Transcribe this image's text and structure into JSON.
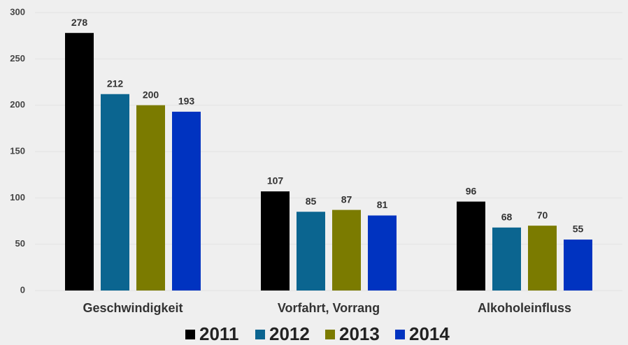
{
  "chart_data": {
    "type": "bar",
    "categories": [
      "Geschwindigkeit",
      "Vorfahrt, Vorrang",
      "Alkoholeinfluss"
    ],
    "series": [
      {
        "name": "2011",
        "color": "#000000",
        "values": [
          278,
          107,
          96
        ]
      },
      {
        "name": "2012",
        "color": "#0b6590",
        "values": [
          212,
          85,
          68
        ]
      },
      {
        "name": "2013",
        "color": "#7b7b00",
        "values": [
          200,
          87,
          70
        ]
      },
      {
        "name": "2014",
        "color": "#0033c0",
        "values": [
          193,
          81,
          55
        ]
      }
    ],
    "ylim": [
      0,
      300
    ],
    "yticks": [
      0,
      50,
      100,
      150,
      200,
      250,
      300
    ],
    "grid": true,
    "legend": "bottom"
  }
}
